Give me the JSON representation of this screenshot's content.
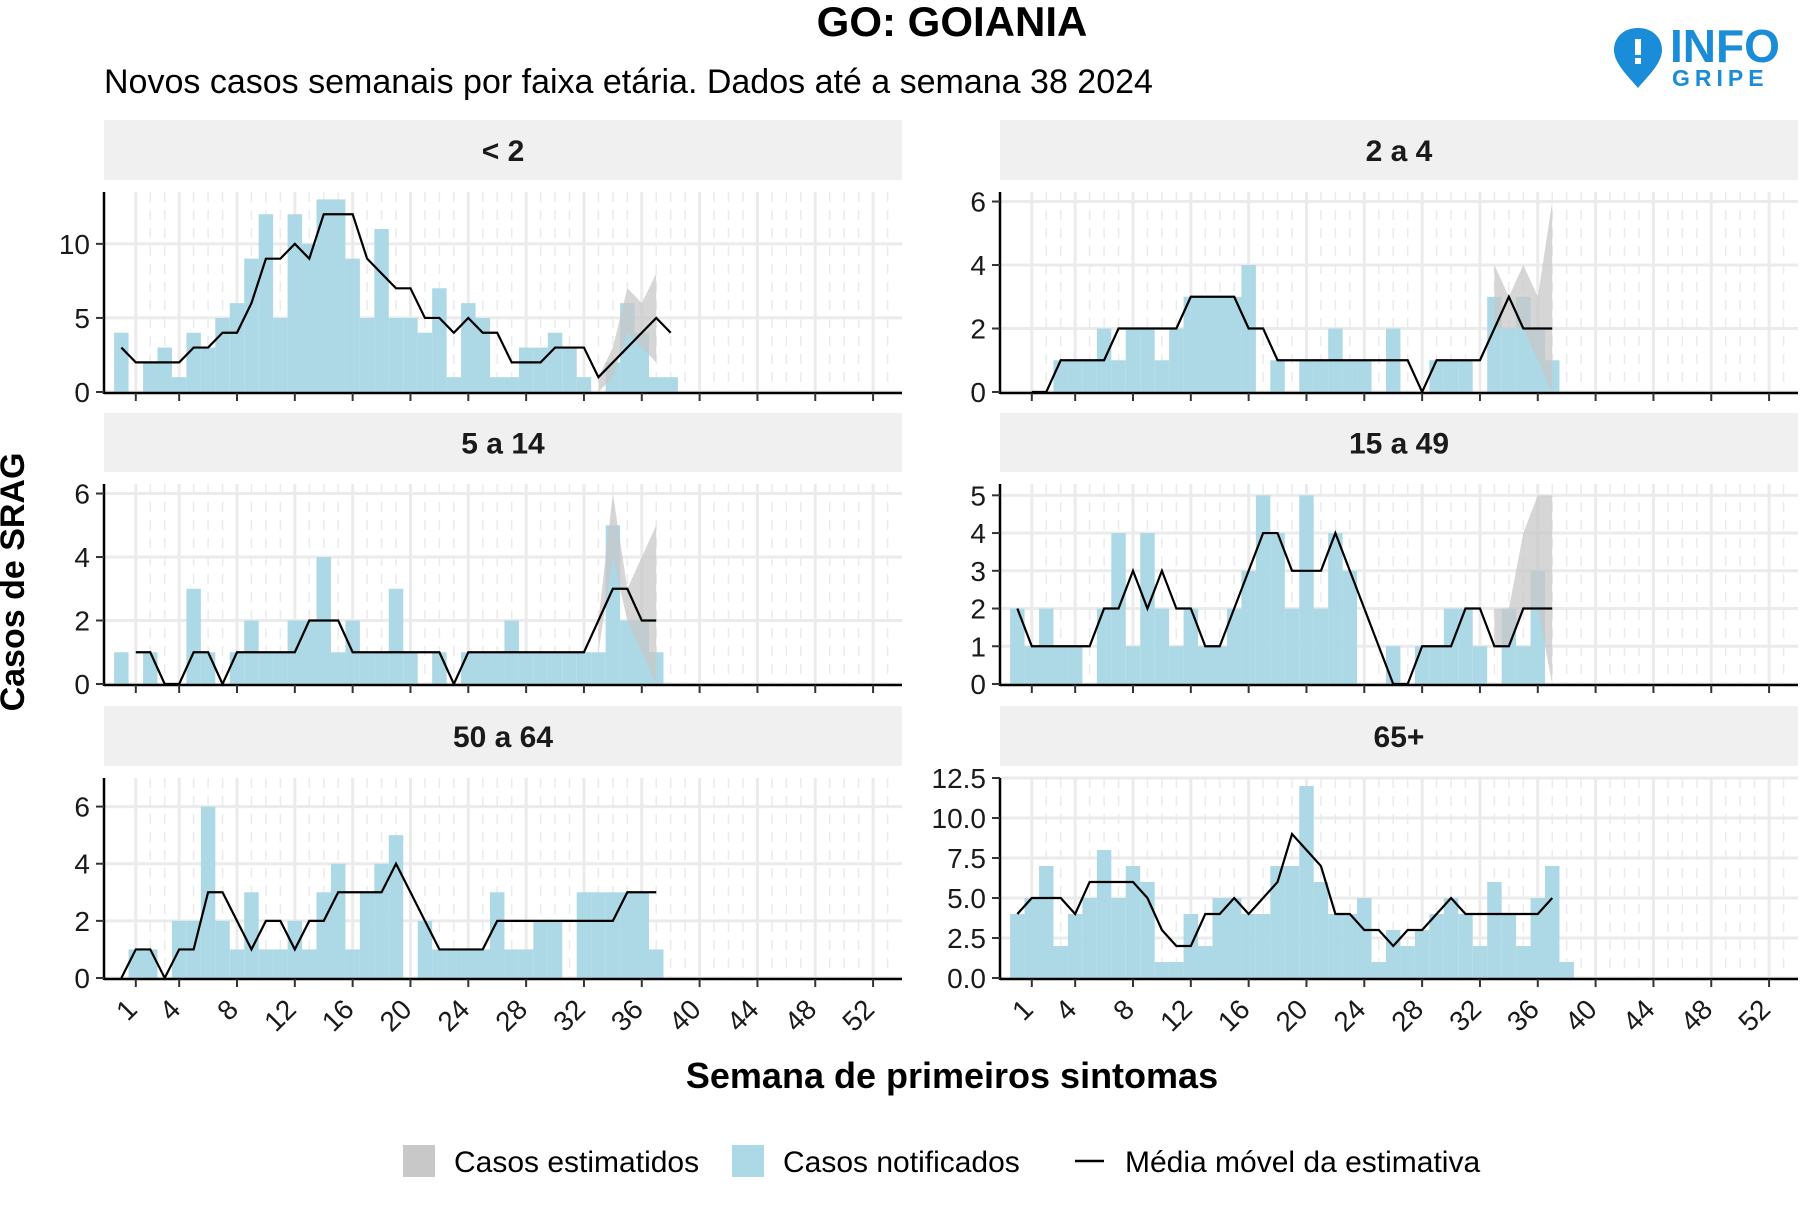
{
  "header": {
    "title": "GO: GOIANIA",
    "subtitle": "Novos casos semanais por faixa etária. Dados até a semana 38 2024"
  },
  "logo": {
    "line1": "INFO",
    "line2": "GRIPE",
    "icon": "map-pin-icon"
  },
  "axes": {
    "ylabel": "Casos de SRAG",
    "xlabel": "Semana de primeiros sintomas",
    "x_ticks": [
      1,
      4,
      8,
      12,
      16,
      20,
      24,
      28,
      32,
      36,
      40,
      44,
      48,
      52
    ]
  },
  "legend": {
    "estimated": "Casos estimatidos",
    "notified": "Casos notificados",
    "moving_average": "Média móvel da estimativa"
  },
  "colors": {
    "notified": "#add8e6",
    "estimated": "#c8c8c8",
    "moving_average": "#000000",
    "strip": "#f0f0f0",
    "grid": "#ebebeb"
  },
  "chart_data": [
    {
      "type": "bar",
      "panel": "< 2",
      "x": [
        0,
        1,
        2,
        3,
        4,
        5,
        6,
        7,
        8,
        9,
        10,
        11,
        12,
        13,
        14,
        15,
        16,
        17,
        18,
        19,
        20,
        21,
        22,
        23,
        24,
        25,
        26,
        27,
        28,
        29,
        30,
        31,
        32,
        33,
        34,
        35,
        36,
        37,
        38
      ],
      "notified": [
        4,
        0,
        2,
        3,
        1,
        4,
        3,
        5,
        6,
        9,
        12,
        5,
        12,
        10,
        13,
        13,
        9,
        5,
        11,
        5,
        5,
        4,
        7,
        1,
        6,
        5,
        1,
        1,
        3,
        3,
        4,
        3,
        1,
        0,
        2,
        6,
        4,
        1,
        1
      ],
      "moving_average": [
        3,
        2,
        2,
        2,
        2,
        3,
        3,
        4,
        4,
        6,
        9,
        9,
        10,
        9,
        12,
        12,
        12,
        9,
        8,
        7,
        7,
        5,
        5,
        4,
        5,
        4,
        4,
        2,
        2,
        2,
        3,
        3,
        3,
        1,
        2,
        3,
        4,
        5,
        4
      ],
      "estimate_upper": [
        null,
        null,
        null,
        null,
        null,
        null,
        null,
        null,
        null,
        null,
        null,
        null,
        null,
        null,
        null,
        null,
        null,
        null,
        null,
        null,
        null,
        null,
        null,
        null,
        null,
        null,
        null,
        null,
        null,
        null,
        null,
        null,
        null,
        1,
        3,
        7,
        6,
        8,
        null
      ],
      "estimate_lower": [
        null,
        null,
        null,
        null,
        null,
        null,
        null,
        null,
        null,
        null,
        null,
        null,
        null,
        null,
        null,
        null,
        null,
        null,
        null,
        null,
        null,
        null,
        null,
        null,
        null,
        null,
        null,
        null,
        null,
        null,
        null,
        null,
        null,
        0,
        1,
        4,
        3,
        2,
        null
      ],
      "ylim": [
        0,
        13.5
      ],
      "yticks": [
        0,
        5,
        10
      ],
      "ytick_labels": [
        "0",
        "5",
        "10"
      ]
    },
    {
      "type": "bar",
      "panel": "2 a 4",
      "x": [
        0,
        1,
        2,
        3,
        4,
        5,
        6,
        7,
        8,
        9,
        10,
        11,
        12,
        13,
        14,
        15,
        16,
        17,
        18,
        19,
        20,
        21,
        22,
        23,
        24,
        25,
        26,
        27,
        28,
        29,
        30,
        31,
        32,
        33,
        34,
        35,
        36,
        37,
        38
      ],
      "notified": [
        0,
        0,
        0,
        1,
        1,
        1,
        2,
        1,
        2,
        2,
        1,
        2,
        3,
        3,
        3,
        3,
        4,
        0,
        1,
        0,
        1,
        1,
        2,
        1,
        1,
        0,
        2,
        0,
        0,
        1,
        1,
        1,
        0,
        3,
        2,
        3,
        2,
        1,
        0
      ],
      "moving_average": [
        null,
        0,
        0,
        1,
        1,
        1,
        1,
        2,
        2,
        2,
        2,
        2,
        3,
        3,
        3,
        3,
        2,
        2,
        1,
        1,
        1,
        1,
        1,
        1,
        1,
        1,
        1,
        1,
        0,
        1,
        1,
        1,
        1,
        2,
        3,
        2,
        2,
        2,
        null
      ],
      "estimate_upper": [
        null,
        null,
        null,
        null,
        null,
        null,
        null,
        null,
        null,
        null,
        null,
        null,
        null,
        null,
        null,
        null,
        null,
        null,
        null,
        null,
        null,
        null,
        null,
        null,
        null,
        null,
        null,
        null,
        null,
        null,
        null,
        null,
        null,
        4,
        3,
        4,
        3,
        6,
        null
      ],
      "estimate_lower": [
        null,
        null,
        null,
        null,
        null,
        null,
        null,
        null,
        null,
        null,
        null,
        null,
        null,
        null,
        null,
        null,
        null,
        null,
        null,
        null,
        null,
        null,
        null,
        null,
        null,
        null,
        null,
        null,
        null,
        null,
        null,
        null,
        null,
        2,
        2,
        2,
        1,
        0,
        null
      ],
      "ylim": [
        0,
        6.3
      ],
      "yticks": [
        0,
        2,
        4,
        6
      ],
      "ytick_labels": [
        "0",
        "2",
        "4",
        "6"
      ]
    },
    {
      "type": "bar",
      "panel": "5 a 14",
      "x": [
        0,
        1,
        2,
        3,
        4,
        5,
        6,
        7,
        8,
        9,
        10,
        11,
        12,
        13,
        14,
        15,
        16,
        17,
        18,
        19,
        20,
        21,
        22,
        23,
        24,
        25,
        26,
        27,
        28,
        29,
        30,
        31,
        32,
        33,
        34,
        35,
        36,
        37,
        38
      ],
      "notified": [
        1,
        0,
        1,
        0,
        0,
        3,
        1,
        0,
        1,
        2,
        1,
        1,
        2,
        2,
        4,
        1,
        2,
        1,
        1,
        3,
        1,
        0,
        1,
        0,
        1,
        1,
        1,
        2,
        1,
        1,
        1,
        1,
        1,
        1,
        5,
        2,
        2,
        1,
        0
      ],
      "moving_average": [
        null,
        1,
        1,
        0,
        0,
        1,
        1,
        0,
        1,
        1,
        1,
        1,
        1,
        2,
        2,
        2,
        1,
        1,
        1,
        1,
        1,
        1,
        1,
        0,
        1,
        1,
        1,
        1,
        1,
        1,
        1,
        1,
        1,
        2,
        3,
        3,
        2,
        2,
        null
      ],
      "estimate_upper": [
        null,
        null,
        null,
        null,
        null,
        null,
        null,
        null,
        null,
        null,
        null,
        null,
        null,
        null,
        null,
        null,
        null,
        null,
        null,
        null,
        null,
        null,
        null,
        null,
        null,
        null,
        null,
        null,
        null,
        null,
        null,
        null,
        null,
        2,
        6,
        3,
        4,
        5,
        null
      ],
      "estimate_lower": [
        null,
        null,
        null,
        null,
        null,
        null,
        null,
        null,
        null,
        null,
        null,
        null,
        null,
        null,
        null,
        null,
        null,
        null,
        null,
        null,
        null,
        null,
        null,
        null,
        null,
        null,
        null,
        null,
        null,
        null,
        null,
        null,
        null,
        1,
        4,
        2,
        1,
        0,
        null
      ],
      "ylim": [
        0,
        6.3
      ],
      "yticks": [
        0,
        2,
        4,
        6
      ],
      "ytick_labels": [
        "0",
        "2",
        "4",
        "6"
      ]
    },
    {
      "type": "bar",
      "panel": "15 a 49",
      "x": [
        0,
        1,
        2,
        3,
        4,
        5,
        6,
        7,
        8,
        9,
        10,
        11,
        12,
        13,
        14,
        15,
        16,
        17,
        18,
        19,
        20,
        21,
        22,
        23,
        24,
        25,
        26,
        27,
        28,
        29,
        30,
        31,
        32,
        33,
        34,
        35,
        36,
        37,
        38
      ],
      "notified": [
        2,
        1,
        2,
        1,
        1,
        0,
        2,
        4,
        1,
        4,
        2,
        1,
        2,
        1,
        1,
        2,
        3,
        5,
        4,
        2,
        5,
        2,
        4,
        3,
        0,
        0,
        1,
        0,
        1,
        1,
        2,
        2,
        1,
        0,
        2,
        1,
        3,
        0,
        0
      ],
      "moving_average": [
        2,
        1,
        1,
        1,
        1,
        1,
        2,
        2,
        3,
        2,
        3,
        2,
        2,
        1,
        1,
        2,
        3,
        4,
        4,
        3,
        3,
        3,
        4,
        3,
        2,
        1,
        0,
        0,
        1,
        1,
        1,
        2,
        2,
        1,
        1,
        2,
        2,
        2,
        null
      ],
      "estimate_upper": [
        null,
        null,
        null,
        null,
        null,
        null,
        null,
        null,
        null,
        null,
        null,
        null,
        null,
        null,
        null,
        null,
        null,
        null,
        null,
        null,
        null,
        null,
        null,
        null,
        null,
        null,
        null,
        null,
        null,
        null,
        null,
        null,
        null,
        2,
        2,
        4,
        5,
        5,
        null
      ],
      "estimate_lower": [
        null,
        null,
        null,
        null,
        null,
        null,
        null,
        null,
        null,
        null,
        null,
        null,
        null,
        null,
        null,
        null,
        null,
        null,
        null,
        null,
        null,
        null,
        null,
        null,
        null,
        null,
        null,
        null,
        null,
        null,
        null,
        null,
        null,
        1,
        1,
        2,
        2,
        0,
        null
      ],
      "ylim": [
        0,
        5.3
      ],
      "yticks": [
        0,
        1,
        2,
        3,
        4,
        5
      ],
      "ytick_labels": [
        "0",
        "1",
        "2",
        "3",
        "4",
        "5"
      ]
    },
    {
      "type": "bar",
      "panel": "50 a 64",
      "x": [
        0,
        1,
        2,
        3,
        4,
        5,
        6,
        7,
        8,
        9,
        10,
        11,
        12,
        13,
        14,
        15,
        16,
        17,
        18,
        19,
        20,
        21,
        22,
        23,
        24,
        25,
        26,
        27,
        28,
        29,
        30,
        31,
        32,
        33,
        34,
        35,
        36,
        37,
        38
      ],
      "notified": [
        0,
        1,
        1,
        0,
        2,
        2,
        6,
        2,
        1,
        3,
        1,
        1,
        2,
        1,
        3,
        4,
        1,
        3,
        4,
        5,
        0,
        2,
        1,
        1,
        1,
        1,
        3,
        1,
        1,
        2,
        2,
        0,
        3,
        3,
        3,
        3,
        3,
        1,
        0
      ],
      "moving_average": [
        0,
        1,
        1,
        0,
        1,
        1,
        3,
        3,
        2,
        1,
        2,
        2,
        1,
        2,
        2,
        3,
        3,
        3,
        3,
        4,
        3,
        2,
        1,
        1,
        1,
        1,
        2,
        2,
        2,
        2,
        2,
        2,
        2,
        2,
        2,
        3,
        3,
        3,
        null
      ],
      "estimate_upper": [
        null,
        null,
        null,
        null,
        null,
        null,
        null,
        null,
        null,
        null,
        null,
        null,
        null,
        null,
        null,
        null,
        null,
        null,
        null,
        null,
        null,
        null,
        null,
        null,
        null,
        null,
        null,
        null,
        null,
        null,
        null,
        null,
        null,
        null,
        null,
        null,
        null,
        null,
        null
      ],
      "estimate_lower": [
        null,
        null,
        null,
        null,
        null,
        null,
        null,
        null,
        null,
        null,
        null,
        null,
        null,
        null,
        null,
        null,
        null,
        null,
        null,
        null,
        null,
        null,
        null,
        null,
        null,
        null,
        null,
        null,
        null,
        null,
        null,
        null,
        null,
        null,
        null,
        null,
        null,
        null,
        null
      ],
      "ylim": [
        0,
        7
      ],
      "yticks": [
        0,
        2,
        4,
        6
      ],
      "ytick_labels": [
        "0",
        "2",
        "4",
        "6"
      ]
    },
    {
      "type": "bar",
      "panel": "65+",
      "x": [
        0,
        1,
        2,
        3,
        4,
        5,
        6,
        7,
        8,
        9,
        10,
        11,
        12,
        13,
        14,
        15,
        16,
        17,
        18,
        19,
        20,
        21,
        22,
        23,
        24,
        25,
        26,
        27,
        28,
        29,
        30,
        31,
        32,
        33,
        34,
        35,
        36,
        37,
        38
      ],
      "notified": [
        4,
        5,
        7,
        2,
        4,
        5,
        8,
        5,
        7,
        6,
        1,
        1,
        4,
        2,
        5,
        5,
        4,
        4,
        7,
        7,
        12,
        6,
        4,
        4,
        5,
        1,
        3,
        2,
        3,
        4,
        5,
        4,
        2,
        6,
        4,
        2,
        5,
        7,
        1
      ],
      "moving_average": [
        4,
        5,
        5,
        5,
        4,
        6,
        6,
        6,
        6,
        5,
        3,
        2,
        2,
        4,
        4,
        5,
        4,
        5,
        6,
        9,
        8,
        7,
        4,
        4,
        3,
        3,
        2,
        3,
        3,
        4,
        5,
        4,
        4,
        4,
        4,
        4,
        4,
        5,
        null
      ],
      "estimate_upper": [
        null,
        null,
        null,
        null,
        null,
        null,
        null,
        null,
        null,
        null,
        null,
        null,
        null,
        null,
        null,
        null,
        null,
        null,
        null,
        null,
        null,
        null,
        null,
        null,
        null,
        null,
        null,
        null,
        null,
        null,
        null,
        null,
        null,
        null,
        null,
        null,
        null,
        null,
        null
      ],
      "estimate_lower": [
        null,
        null,
        null,
        null,
        null,
        null,
        null,
        null,
        null,
        null,
        null,
        null,
        null,
        null,
        null,
        null,
        null,
        null,
        null,
        null,
        null,
        null,
        null,
        null,
        null,
        null,
        null,
        null,
        null,
        null,
        null,
        null,
        null,
        null,
        null,
        null,
        null,
        null,
        null
      ],
      "ylim": [
        0,
        12.5
      ],
      "yticks": [
        0,
        2.5,
        5,
        7.5,
        10,
        12.5
      ],
      "ytick_labels": [
        "0.0",
        "2.5",
        "5.0",
        "7.5",
        "10.0",
        "12.5"
      ]
    }
  ]
}
